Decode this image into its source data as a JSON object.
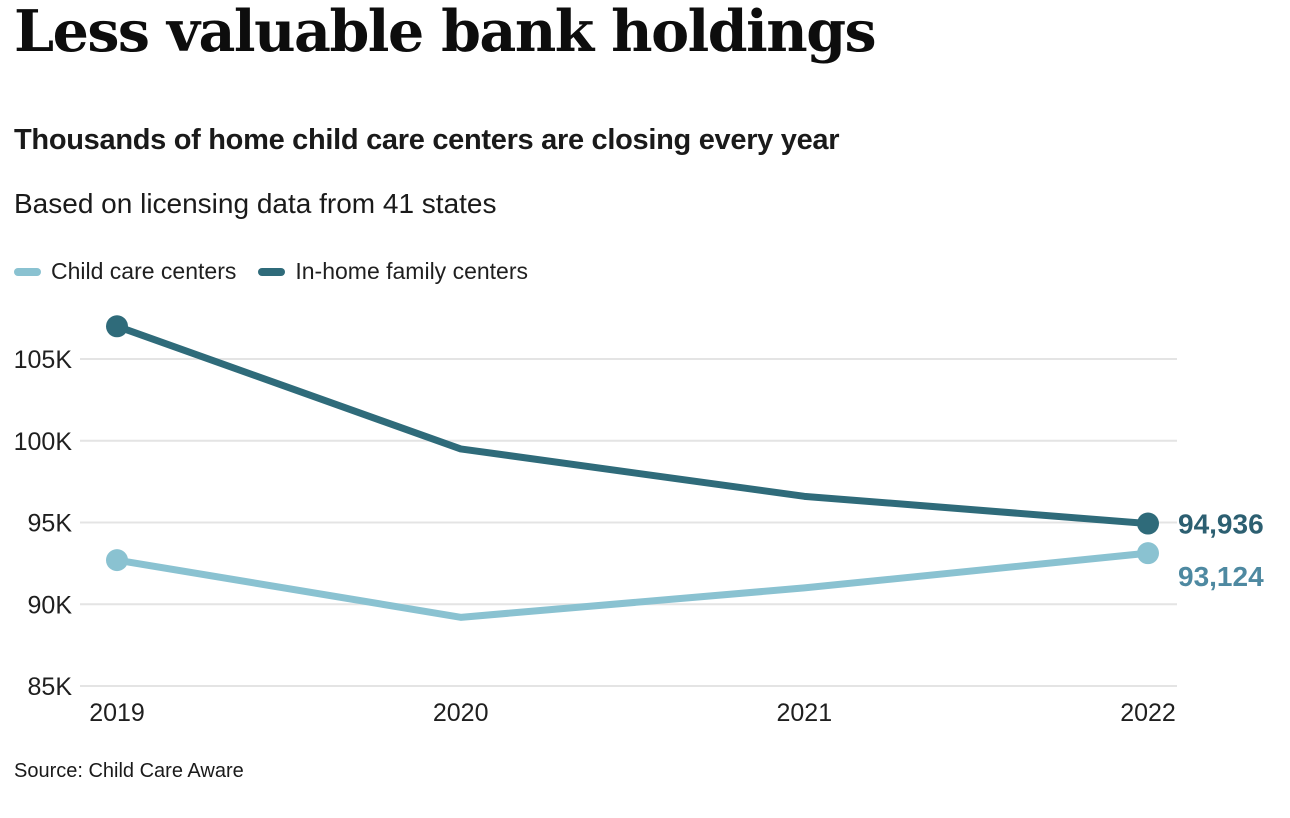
{
  "chart_data": {
    "type": "line",
    "title": "Less valuable bank holdings",
    "subtitle": "Thousands of home child care centers are closing every year",
    "description": "Based on licensing data from 41 states",
    "source": "Source: Child Care Aware",
    "x": [
      "2019",
      "2020",
      "2021",
      "2022"
    ],
    "series": [
      {
        "name": "Child care centers",
        "color": "#8ac2d1",
        "label_color": "#4e89a1",
        "values": [
          92700,
          89200,
          91000,
          93124
        ],
        "end_label": "93,124"
      },
      {
        "name": "In-home family centers",
        "color": "#2f6b7a",
        "label_color": "#2c5f71",
        "values": [
          107000,
          99500,
          96600,
          94936
        ],
        "end_label": "94,936"
      }
    ],
    "yticks": [
      {
        "value": 85000,
        "label": "85K"
      },
      {
        "value": 90000,
        "label": "90K"
      },
      {
        "value": 95000,
        "label": "95K"
      },
      {
        "value": 100000,
        "label": "100K"
      },
      {
        "value": 105000,
        "label": "105K"
      }
    ],
    "ylim": [
      85000,
      108000
    ],
    "legend_position": "top",
    "grid": "horizontal",
    "gridline_color": "#e4e4e4",
    "tick_text_color": "#1f1f1f"
  }
}
